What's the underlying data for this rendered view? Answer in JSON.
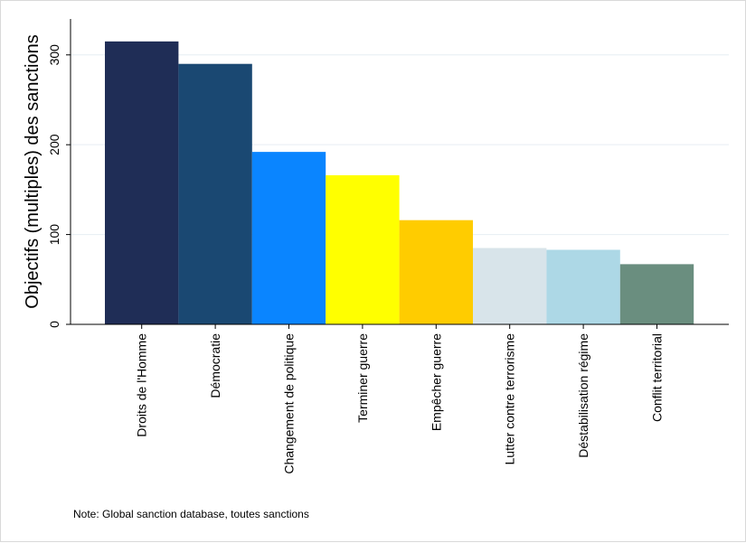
{
  "chart_data": {
    "type": "bar",
    "title": "",
    "xlabel": "",
    "ylabel": "Objectifs (multiples) des sanctions",
    "categories": [
      "Droits de l'Homme",
      "Démocratie",
      "Changement de politique",
      "Terminer guerre",
      "Empêcher guerre",
      "Lutter contre terrorisme",
      "Déstabilisation régime",
      "Conflit territorial"
    ],
    "values": [
      315,
      290,
      192,
      166,
      116,
      85,
      83,
      67
    ],
    "colors": [
      "#1f2d56",
      "#1a4872",
      "#0a85ff",
      "#ffff00",
      "#ffcc00",
      "#d8e4ea",
      "#add8e6",
      "#6a8e7f"
    ],
    "ylim": [
      0,
      340
    ],
    "yticks": [
      0,
      100,
      200,
      300
    ],
    "grid": true
  },
  "note": "Note: Global sanction database, toutes sanctions"
}
